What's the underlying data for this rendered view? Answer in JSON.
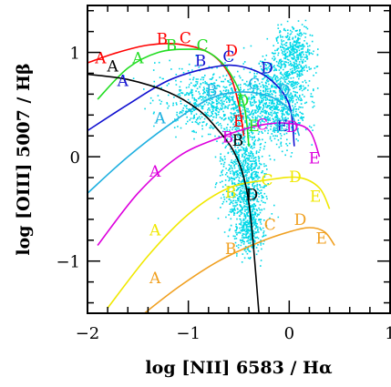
{
  "chart_data": {
    "type": "line",
    "xlabel": "log [NII] 6583 / Hα",
    "ylabel": "log [OIII] 5007 / Hβ",
    "xlim": [
      -2,
      1
    ],
    "ylim": [
      -1.5,
      1.45
    ],
    "xticks": [
      "−2",
      "−1",
      "0",
      "1"
    ],
    "yticks": [
      "−1",
      "0",
      "1"
    ],
    "xtick_values": [
      -2,
      -1,
      0,
      1
    ],
    "ytick_values": [
      -1,
      0,
      1
    ],
    "grid": false,
    "legend": "none",
    "scatter_color": "#00d8e8",
    "series": [
      {
        "color": "#ff0000",
        "x": [
          -2.0,
          -1.7,
          -1.4,
          -1.1,
          -0.8,
          -0.6,
          -0.5,
          -0.45
        ],
        "y": [
          0.9,
          1.0,
          1.07,
          1.08,
          1.0,
          0.8,
          0.5,
          0.2
        ],
        "labels": [
          {
            "text": "A",
            "x": -1.87,
            "y": 0.95
          },
          {
            "text": "B",
            "x": -1.26,
            "y": 1.13
          },
          {
            "text": "C",
            "x": -1.03,
            "y": 1.14
          },
          {
            "text": "D",
            "x": -0.57,
            "y": 1.02
          },
          {
            "text": "E",
            "x": -0.5,
            "y": 0.34
          }
        ]
      },
      {
        "color": "#22dd22",
        "x": [
          -1.9,
          -1.6,
          -1.3,
          -1.0,
          -0.8,
          -0.6,
          -0.45,
          -0.4
        ],
        "y": [
          0.55,
          0.85,
          1.0,
          1.03,
          1.0,
          0.82,
          0.5,
          0.1
        ],
        "labels": [
          {
            "text": "A",
            "x": -1.5,
            "y": 0.95
          },
          {
            "text": "B",
            "x": -1.17,
            "y": 1.07
          },
          {
            "text": "C",
            "x": -0.86,
            "y": 1.07
          },
          {
            "text": "D",
            "x": -0.46,
            "y": 0.54
          },
          {
            "text": "E",
            "x": -0.35,
            "y": 0.3
          }
        ]
      },
      {
        "color": "#1010d0",
        "x": [
          -2.0,
          -1.6,
          -1.2,
          -0.8,
          -0.5,
          -0.2,
          0.0,
          0.05
        ],
        "y": [
          0.25,
          0.5,
          0.73,
          0.85,
          0.87,
          0.75,
          0.5,
          0.1
        ],
        "labels": [
          {
            "text": "A",
            "x": -1.65,
            "y": 0.73
          },
          {
            "text": "B",
            "x": -0.88,
            "y": 0.92
          },
          {
            "text": "C",
            "x": -0.6,
            "y": 0.96
          },
          {
            "text": "D",
            "x": -0.22,
            "y": 0.85
          },
          {
            "text": "E",
            "x": -0.07,
            "y": 0.3
          }
        ]
      },
      {
        "color": "#20b0e0",
        "x": [
          -2.0,
          -1.6,
          -1.2,
          -0.8,
          -0.5,
          -0.2,
          0.0,
          0.1
        ],
        "y": [
          -0.35,
          0.0,
          0.3,
          0.55,
          0.62,
          0.58,
          0.45,
          0.2
        ],
        "labels": [
          {
            "text": "A",
            "x": -1.28,
            "y": 0.37
          },
          {
            "text": "B",
            "x": -0.77,
            "y": 0.64
          },
          {
            "text": "C",
            "x": -0.35,
            "y": 0.7
          },
          {
            "text": "D",
            "x": -0.05,
            "y": 0.64
          },
          {
            "text": "E",
            "x": -0.09,
            "y": 0.3
          }
        ]
      },
      {
        "color": "#dd00dd",
        "x": [
          -1.9,
          -1.5,
          -1.1,
          -0.7,
          -0.3,
          0.0,
          0.2,
          0.3
        ],
        "y": [
          -0.85,
          -0.35,
          0.0,
          0.18,
          0.3,
          0.32,
          0.25,
          0.0
        ],
        "labels": [
          {
            "text": "A",
            "x": -1.33,
            "y": -0.14
          },
          {
            "text": "B",
            "x": -0.61,
            "y": 0.19
          },
          {
            "text": "C",
            "x": -0.27,
            "y": 0.31
          },
          {
            "text": "D",
            "x": 0.03,
            "y": 0.29
          },
          {
            "text": "E",
            "x": 0.25,
            "y": -0.01
          }
        ]
      },
      {
        "color": "#f0e800",
        "x": [
          -1.8,
          -1.4,
          -1.0,
          -0.6,
          -0.2,
          0.1,
          0.3,
          0.4
        ],
        "y": [
          -1.45,
          -0.95,
          -0.55,
          -0.3,
          -0.22,
          -0.2,
          -0.3,
          -0.5
        ],
        "labels": [
          {
            "text": "A",
            "x": -1.33,
            "y": -0.7
          },
          {
            "text": "B",
            "x": -0.58,
            "y": -0.34
          },
          {
            "text": "C",
            "x": -0.22,
            "y": -0.22
          },
          {
            "text": "D",
            "x": 0.06,
            "y": -0.19
          },
          {
            "text": "E",
            "x": 0.26,
            "y": -0.38
          }
        ]
      },
      {
        "color": "#f0a020",
        "x": [
          -1.5,
          -1.1,
          -0.7,
          -0.3,
          0.0,
          0.2,
          0.35,
          0.45
        ],
        "y": [
          -1.55,
          -1.25,
          -1.0,
          -0.82,
          -0.72,
          -0.68,
          -0.72,
          -0.85
        ],
        "labels": [
          {
            "text": "A",
            "x": -1.33,
            "y": -1.16
          },
          {
            "text": "B",
            "x": -0.58,
            "y": -0.88
          },
          {
            "text": "C",
            "x": -0.19,
            "y": -0.65
          },
          {
            "text": "D",
            "x": 0.11,
            "y": -0.6
          },
          {
            "text": "E",
            "x": 0.32,
            "y": -0.78
          }
        ]
      },
      {
        "color": "#000000",
        "x": [
          -2.0,
          -1.6,
          -1.2,
          -0.9,
          -0.7,
          -0.55,
          -0.45,
          -0.38,
          -0.3
        ],
        "y": [
          0.79,
          0.74,
          0.62,
          0.45,
          0.25,
          0.05,
          -0.2,
          -0.6,
          -1.5
        ],
        "labels": [
          {
            "text": "A",
            "x": -1.75,
            "y": 0.87
          },
          {
            "text": "B",
            "x": -0.51,
            "y": 0.16
          },
          {
            "text": "D",
            "x": -0.37,
            "y": -0.36
          }
        ]
      }
    ]
  }
}
